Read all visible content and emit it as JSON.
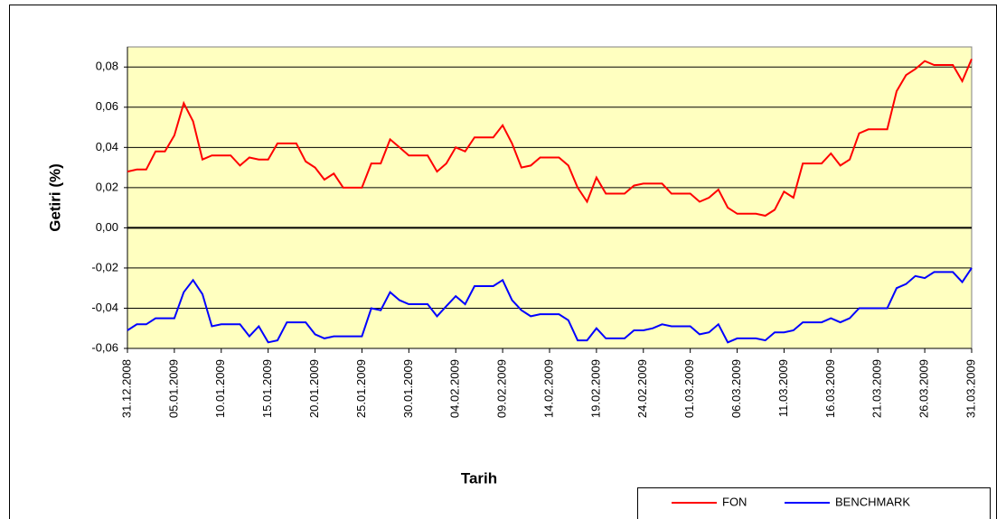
{
  "chart_data": {
    "type": "line",
    "y_label": "Getiri (%)",
    "x_label": "Tarih",
    "categories": [
      "31.12.2008",
      null,
      null,
      null,
      null,
      "05.01.2009",
      null,
      null,
      null,
      null,
      "10.01.2009",
      null,
      null,
      null,
      null,
      "15.01.2009",
      null,
      null,
      null,
      null,
      "20.01.2009",
      null,
      null,
      null,
      null,
      "25.01.2009",
      null,
      null,
      null,
      null,
      "30.01.2009",
      null,
      null,
      null,
      null,
      "04.02.2009",
      null,
      null,
      null,
      null,
      "09.02.2009",
      null,
      null,
      null,
      null,
      "14.02.2009",
      null,
      null,
      null,
      null,
      "19.02.2009",
      null,
      null,
      null,
      null,
      "24.02.2009",
      null,
      null,
      null,
      null,
      "01.03.2009",
      null,
      null,
      null,
      null,
      "06.03.2009",
      null,
      null,
      null,
      null,
      "11.03.2009",
      null,
      null,
      null,
      null,
      "16.03.2009",
      null,
      null,
      null,
      null,
      "21.03.2009",
      null,
      null,
      null,
      null,
      "26.03.2009",
      null,
      null,
      null,
      null,
      "31.03.2009"
    ],
    "series": [
      {
        "name": "FON",
        "color": "#ff0000",
        "values": [
          0.028,
          0.029,
          0.029,
          0.038,
          0.038,
          0.046,
          0.062,
          0.053,
          0.034,
          0.036,
          0.036,
          0.036,
          0.031,
          0.035,
          0.034,
          0.034,
          0.042,
          0.042,
          0.042,
          0.033,
          0.03,
          0.024,
          0.027,
          0.02,
          0.02,
          0.02,
          0.032,
          0.032,
          0.044,
          0.04,
          0.036,
          0.036,
          0.036,
          0.028,
          0.032,
          0.04,
          0.038,
          0.045,
          0.045,
          0.045,
          0.051,
          0.042,
          0.03,
          0.031,
          0.035,
          0.035,
          0.035,
          0.031,
          0.02,
          0.013,
          0.025,
          0.017,
          0.017,
          0.017,
          0.021,
          0.022,
          0.022,
          0.022,
          0.017,
          0.017,
          0.017,
          0.013,
          0.015,
          0.019,
          0.01,
          0.007,
          0.007,
          0.007,
          0.006,
          0.009,
          0.018,
          0.015,
          0.032,
          0.032,
          0.032,
          0.037,
          0.031,
          0.034,
          0.047,
          0.049,
          0.049,
          0.049,
          0.068,
          0.076,
          0.079,
          0.083,
          0.081,
          0.081,
          0.081,
          0.073,
          0.084
        ]
      },
      {
        "name": "BENCHMARK",
        "color": "#0000ff",
        "values": [
          -0.051,
          -0.048,
          -0.048,
          -0.045,
          -0.045,
          -0.045,
          -0.032,
          -0.026,
          -0.033,
          -0.049,
          -0.048,
          -0.048,
          -0.048,
          -0.054,
          -0.049,
          -0.057,
          -0.056,
          -0.047,
          -0.047,
          -0.047,
          -0.053,
          -0.055,
          -0.054,
          -0.054,
          -0.054,
          -0.054,
          -0.04,
          -0.041,
          -0.032,
          -0.036,
          -0.038,
          -0.038,
          -0.038,
          -0.044,
          -0.039,
          -0.034,
          -0.038,
          -0.029,
          -0.029,
          -0.029,
          -0.026,
          -0.036,
          -0.041,
          -0.044,
          -0.043,
          -0.043,
          -0.043,
          -0.046,
          -0.056,
          -0.056,
          -0.05,
          -0.055,
          -0.055,
          -0.055,
          -0.051,
          -0.051,
          -0.05,
          -0.048,
          -0.049,
          -0.049,
          -0.049,
          -0.053,
          -0.052,
          -0.048,
          -0.057,
          -0.055,
          -0.055,
          -0.055,
          -0.056,
          -0.052,
          -0.052,
          -0.051,
          -0.047,
          -0.047,
          -0.047,
          -0.045,
          -0.047,
          -0.045,
          -0.04,
          -0.04,
          -0.04,
          -0.04,
          -0.03,
          -0.028,
          -0.024,
          -0.025,
          -0.022,
          -0.022,
          -0.022,
          -0.027,
          -0.02
        ]
      }
    ],
    "ylim": [
      -0.06,
      0.09
    ],
    "yticks": [
      {
        "value": -0.06,
        "label": "-0,06"
      },
      {
        "value": -0.04,
        "label": "-0,04"
      },
      {
        "value": -0.02,
        "label": "-0,02"
      },
      {
        "value": 0,
        "label": "0,00"
      },
      {
        "value": 0.02,
        "label": "0,02"
      },
      {
        "value": 0.04,
        "label": "0,04"
      },
      {
        "value": 0.06,
        "label": "0,06"
      },
      {
        "value": 0.08,
        "label": "0,08"
      }
    ],
    "grid": true,
    "plot_background": "#ffffc0"
  }
}
